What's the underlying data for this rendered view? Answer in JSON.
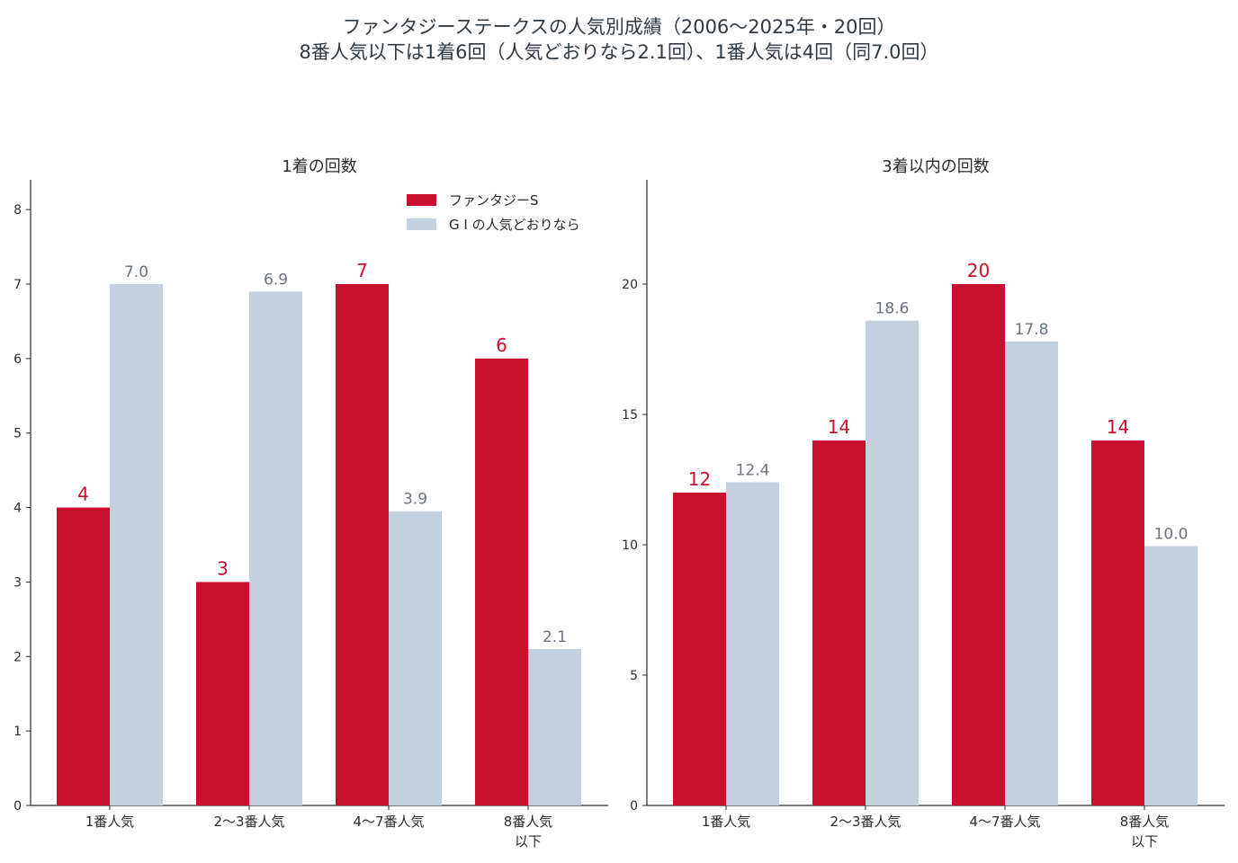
{
  "title": {
    "line1": "ファンタジーステークスの人気別成績（2006〜2025年・20回）",
    "line2": "8番人気以下は1着6回（人気どおりなら2.1回）、1番人気は4回（同7.0回）"
  },
  "colors": {
    "actual": "#c8102e",
    "expected": "#c3d0e0"
  },
  "legend": {
    "placement": "top-right of left panel",
    "actual": "ファンタジーS",
    "expected": "G I の人気どおりなら"
  },
  "chart_data": [
    {
      "type": "bar",
      "title": "1着の回数",
      "categories": [
        [
          "1番人気"
        ],
        [
          "2〜3番人気"
        ],
        [
          "4〜7番人気"
        ],
        [
          "8番人気",
          "以下"
        ]
      ],
      "series": [
        {
          "name": "ファンタジーS",
          "values": [
            4,
            3,
            7,
            6
          ],
          "labels": [
            "4",
            "3",
            "7",
            "6"
          ]
        },
        {
          "name": "G I の人気どおりなら",
          "values": [
            7.0,
            6.9,
            3.95,
            2.1
          ],
          "labels": [
            "7.0",
            "6.9",
            "3.9",
            "2.1"
          ]
        }
      ],
      "ylim": [
        0,
        8.4
      ],
      "yticks": [
        0,
        1,
        2,
        3,
        4,
        5,
        6,
        7,
        8
      ],
      "grid": false
    },
    {
      "type": "bar",
      "title": "3着以内の回数",
      "categories": [
        [
          "1番人気"
        ],
        [
          "2〜3番人気"
        ],
        [
          "4〜7番人気"
        ],
        [
          "8番人気",
          "以下"
        ]
      ],
      "series": [
        {
          "name": "ファンタジーS",
          "values": [
            12,
            14,
            20,
            14
          ],
          "labels": [
            "12",
            "14",
            "20",
            "14"
          ]
        },
        {
          "name": "G I の人気どおりなら",
          "values": [
            12.4,
            18.6,
            17.8,
            9.95
          ],
          "labels": [
            "12.4",
            "18.6",
            "17.8",
            "10.0"
          ]
        }
      ],
      "ylim": [
        0,
        24
      ],
      "yticks": [
        0,
        5,
        10,
        15,
        20
      ],
      "grid": false
    }
  ]
}
